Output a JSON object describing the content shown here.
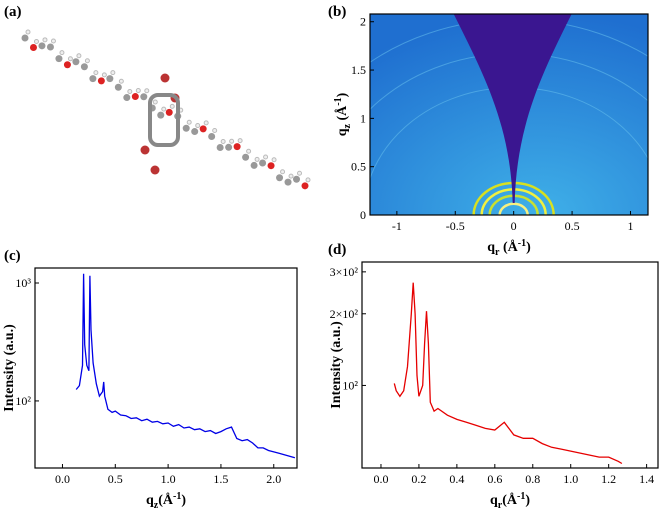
{
  "panel_a": {
    "label": "(a)"
  },
  "chart_data": [
    {
      "label": "(b)",
      "type": "heatmap",
      "x_label": [
        "q",
        "r",
        " (Å",
        "-1",
        ")"
      ],
      "y_label": [
        "q",
        "z",
        " (Å",
        "-1",
        ")"
      ],
      "xlim": [
        -1.23,
        1.15
      ],
      "ylim": [
        0,
        2.08
      ],
      "xticks": [
        -1,
        -0.5,
        0,
        0.5,
        1
      ],
      "yticks": [
        0,
        0.5,
        1,
        1.5,
        2
      ]
    },
    {
      "label": "(c)",
      "type": "line",
      "color": "#0000e6",
      "log_y": true,
      "x_label": [
        "q",
        "z",
        "(Å",
        "-1",
        ")"
      ],
      "y_label": "Intensity (a.u.)",
      "xlim": [
        -0.26,
        2.22
      ],
      "ylim": [
        27,
        1340
      ],
      "xticks": [
        {
          "value": 0,
          "label": "0.0"
        },
        {
          "value": 0.5,
          "label": "0.5"
        },
        {
          "value": 1,
          "label": "1.0"
        },
        {
          "value": 1.5,
          "label": "1.5"
        },
        {
          "value": 2,
          "label": "2.0"
        }
      ],
      "yticks": [
        {
          "value": 100,
          "label": "10²"
        },
        {
          "value": 1000,
          "label": "10³"
        }
      ],
      "x": [
        0.13,
        0.16,
        0.19,
        0.2,
        0.21,
        0.23,
        0.25,
        0.26,
        0.27,
        0.29,
        0.32,
        0.35,
        0.38,
        0.39,
        0.4,
        0.43,
        0.47,
        0.5,
        0.55,
        0.6,
        0.65,
        0.7,
        0.75,
        0.8,
        0.85,
        0.9,
        0.95,
        1.0,
        1.05,
        1.1,
        1.15,
        1.2,
        1.25,
        1.3,
        1.35,
        1.4,
        1.45,
        1.5,
        1.55,
        1.6,
        1.65,
        1.7,
        1.75,
        1.8,
        1.85,
        1.9,
        1.95,
        2.0,
        2.05,
        2.1,
        2.15,
        2.2
      ],
      "values": [
        125,
        135,
        200,
        1200,
        300,
        200,
        180,
        1150,
        400,
        210,
        140,
        110,
        120,
        145,
        110,
        85,
        80,
        82,
        76,
        75,
        71,
        72,
        68,
        70,
        66,
        67,
        64,
        65,
        61,
        63,
        59,
        60,
        57,
        58,
        55,
        56,
        53,
        55,
        58,
        60,
        48,
        46,
        47,
        44,
        40,
        40,
        38,
        37,
        36,
        35,
        34,
        33
      ]
    },
    {
      "label": "(d)",
      "type": "line",
      "color": "#e60000",
      "log_y": true,
      "x_label": [
        "q",
        "r",
        "(Å",
        "-1",
        ")"
      ],
      "y_label": "Intensity (a.u.)",
      "xlim": [
        -0.1,
        1.46
      ],
      "ylim": [
        45,
        330
      ],
      "xticks": [
        {
          "value": 0,
          "label": "0.0"
        },
        0.2,
        0.4,
        0.6,
        0.8,
        {
          "value": 1,
          "label": "1.0"
        },
        1.2,
        1.4
      ],
      "yticks": [
        {
          "value": 100,
          "label": "10²"
        },
        {
          "value": 200,
          "label": "2×10²"
        },
        {
          "value": 300,
          "label": "3×10²"
        }
      ],
      "x": [
        0.07,
        0.08,
        0.1,
        0.12,
        0.14,
        0.16,
        0.17,
        0.18,
        0.19,
        0.2,
        0.22,
        0.23,
        0.24,
        0.25,
        0.26,
        0.28,
        0.3,
        0.35,
        0.4,
        0.45,
        0.5,
        0.55,
        0.6,
        0.65,
        0.7,
        0.75,
        0.8,
        0.85,
        0.9,
        0.95,
        1.0,
        1.05,
        1.1,
        1.15,
        1.2,
        1.25,
        1.27
      ],
      "values": [
        102,
        95,
        90,
        95,
        120,
        200,
        270,
        200,
        110,
        90,
        100,
        150,
        205,
        150,
        85,
        78,
        80,
        75,
        72,
        70,
        68,
        66,
        65,
        70,
        62,
        60,
        60,
        57,
        55,
        54,
        53,
        52,
        51,
        50,
        50,
        48,
        47
      ]
    }
  ]
}
